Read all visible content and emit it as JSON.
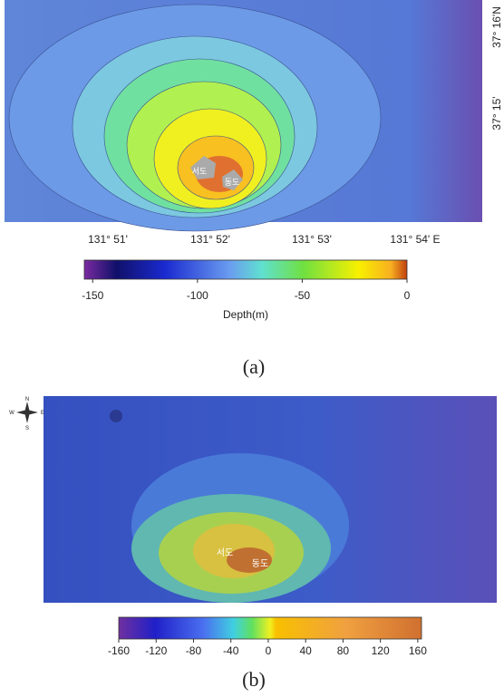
{
  "panel_a": {
    "latitude_labels": [
      "37° 16'N",
      "37° 15'"
    ],
    "longitude_labels": [
      "131° 51'",
      "131° 52'",
      "131° 53'",
      "131° 54' E"
    ],
    "islands": [
      "서도",
      "동도"
    ],
    "colorbar": {
      "lim": [
        -154,
        0
      ],
      "ticks": [
        -150,
        -100,
        -50,
        0
      ],
      "label": "Depth(m)"
    },
    "caption": "(a)"
  },
  "panel_b": {
    "compass": [
      "N",
      "S",
      "E",
      "W"
    ],
    "islands": [
      "서도",
      "동도"
    ],
    "colorbar": {
      "lim": [
        -160,
        164
      ],
      "ticks": [
        -160,
        -120,
        -80,
        -40,
        0,
        40,
        80,
        120,
        160
      ]
    },
    "caption": "(b)"
  }
}
